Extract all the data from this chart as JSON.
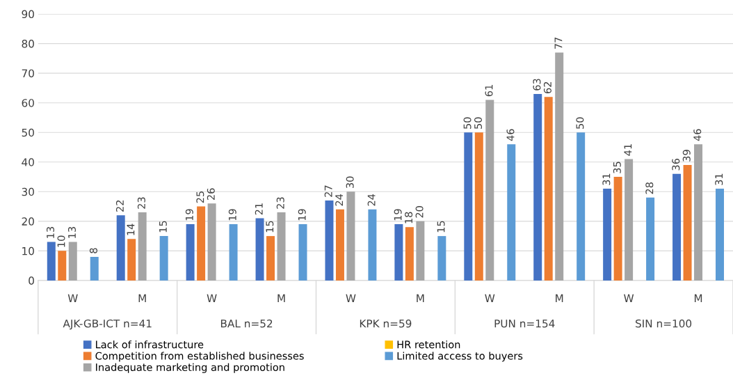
{
  "chart_data": {
    "type": "bar",
    "categories": [
      "W",
      "M",
      "W",
      "M",
      "W",
      "M",
      "W",
      "M",
      "W",
      "M"
    ],
    "annotations": [
      "AJK-GB-ICT n=41",
      "BAL n=52",
      "KPK n=59",
      "PUN n=154",
      "SIN n=100"
    ],
    "series": [
      {
        "name": "Lack of infrastructure",
        "color": "#4472c4",
        "values": [
          13,
          22,
          19,
          21,
          27,
          19,
          50,
          63,
          31,
          36
        ]
      },
      {
        "name": "Competition from established businesses",
        "color": "#ed7d31",
        "values": [
          10,
          14,
          25,
          15,
          24,
          18,
          50,
          62,
          35,
          39
        ]
      },
      {
        "name": "Inadequate marketing and promotion",
        "color": "#a5a5a5",
        "values": [
          13,
          23,
          26,
          23,
          30,
          20,
          61,
          77,
          41,
          46
        ]
      },
      {
        "name": "HR retention",
        "color": "#ffc000",
        "values": [
          null,
          null,
          null,
          null,
          null,
          null,
          null,
          null,
          null,
          null
        ]
      },
      {
        "name": "Limited access to buyers",
        "color": "#5b9bd5",
        "values": [
          8,
          15,
          19,
          19,
          24,
          15,
          46,
          50,
          28,
          31
        ]
      }
    ],
    "ylim": [
      0,
      90
    ],
    "yticks": [
      0,
      10,
      20,
      30,
      40,
      50,
      60,
      70,
      80,
      90
    ],
    "grid": "y",
    "legend": "bottom",
    "data_labels": true
  }
}
